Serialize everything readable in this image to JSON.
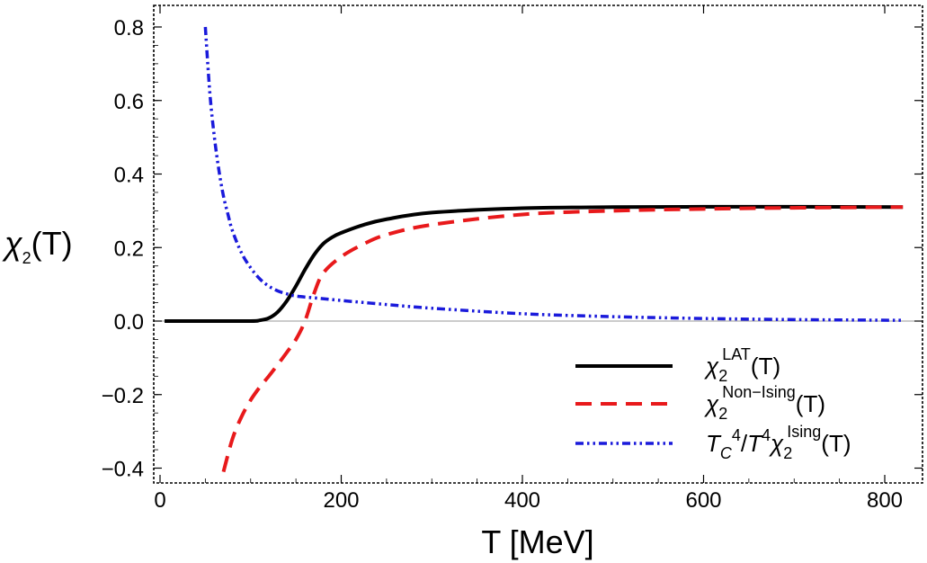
{
  "chart_data": {
    "type": "line",
    "title": "",
    "xlabel": "T [MeV]",
    "ylabel": {
      "base": "χ",
      "sub": "2",
      "arg": "(T)"
    },
    "xlim": [
      -10,
      830
    ],
    "ylim": [
      -0.42,
      0.86
    ],
    "x_ticks": [
      0,
      200,
      400,
      600,
      800
    ],
    "y_ticks": [
      -0.4,
      -0.2,
      0.0,
      0.2,
      0.4,
      0.6,
      0.8
    ],
    "x_tick_labels": [
      "0",
      "200",
      "400",
      "600",
      "800"
    ],
    "y_tick_labels": [
      "−0.4",
      "−0.2",
      "0.0",
      "0.2",
      "0.4",
      "0.6",
      "0.8"
    ],
    "grid": false,
    "zero_line": true,
    "legend_position": "bottom-right",
    "series": [
      {
        "name": "chi2_LAT",
        "legend": {
          "base": "χ",
          "sub": "2",
          "sup": "LAT",
          "arg": "(T)"
        },
        "color": "#000000",
        "style": "solid",
        "x": [
          5,
          50,
          100,
          110,
          120,
          130,
          140,
          150,
          160,
          170,
          180,
          190,
          200,
          225,
          250,
          300,
          400,
          500,
          600,
          700,
          820
        ],
        "y": [
          0.0,
          0.0,
          0.0,
          0.002,
          0.008,
          0.025,
          0.055,
          0.095,
          0.14,
          0.18,
          0.21,
          0.228,
          0.24,
          0.262,
          0.277,
          0.295,
          0.307,
          0.31,
          0.311,
          0.311,
          0.31
        ]
      },
      {
        "name": "chi2_NonIsing",
        "legend": {
          "base": "χ",
          "sub": "2",
          "sup": "Non−Ising",
          "arg": "(T)"
        },
        "color": "#e8191b",
        "style": "dashed",
        "x": [
          70,
          80,
          90,
          100,
          110,
          120,
          130,
          140,
          150,
          160,
          170,
          180,
          200,
          225,
          250,
          300,
          400,
          500,
          600,
          700,
          820
        ],
        "y": [
          -0.41,
          -0.32,
          -0.26,
          -0.215,
          -0.18,
          -0.15,
          -0.118,
          -0.085,
          -0.05,
          0.0,
          0.075,
          0.13,
          0.175,
          0.21,
          0.235,
          0.262,
          0.29,
          0.3,
          0.305,
          0.308,
          0.31
        ]
      },
      {
        "name": "chi2_Ising_scaled",
        "legend": {
          "text": "T C⁴/T⁴",
          "base": "χ",
          "sub": "2",
          "sup": "Ising",
          "arg": "(T)"
        },
        "color": "#1a1adb",
        "style": "dashdotdot",
        "x": [
          50,
          55,
          60,
          65,
          70,
          75,
          80,
          90,
          100,
          110,
          120,
          130,
          140,
          150,
          175,
          200,
          250,
          300,
          400,
          500,
          600,
          700,
          820
        ],
        "y": [
          0.8,
          0.62,
          0.5,
          0.41,
          0.34,
          0.29,
          0.245,
          0.185,
          0.145,
          0.115,
          0.095,
          0.082,
          0.074,
          0.068,
          0.062,
          0.056,
          0.045,
          0.035,
          0.02,
          0.012,
          0.007,
          0.004,
          0.002
        ]
      }
    ]
  }
}
